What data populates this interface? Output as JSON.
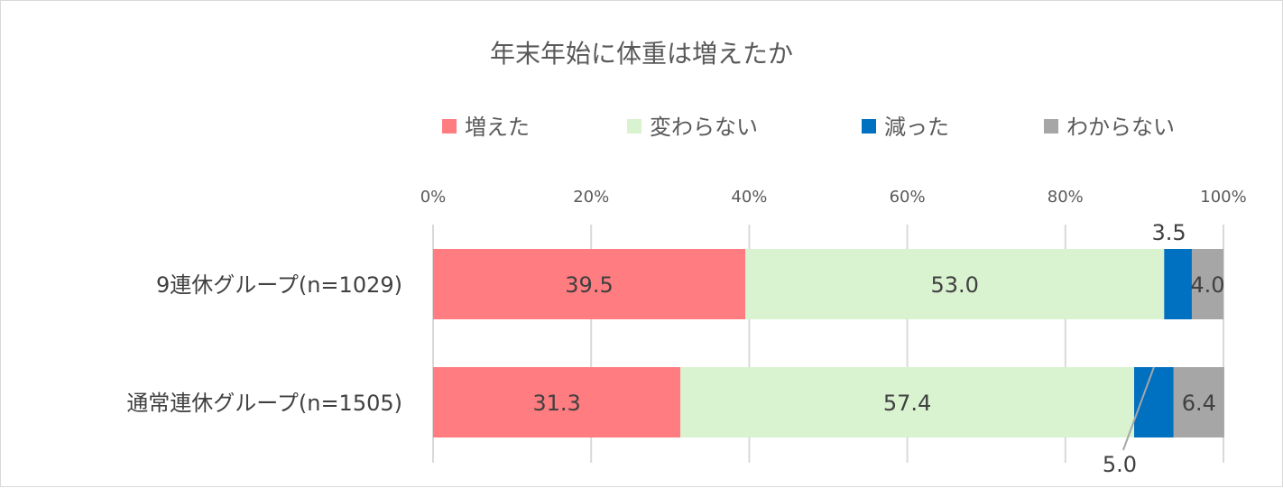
{
  "chart_data": {
    "type": "bar",
    "orientation": "horizontal",
    "stacked": "percent",
    "title": "年末年始に体重は増えたか",
    "categories": [
      "9連休グループ(n=1029)",
      "通常連休グループ(n=1505)"
    ],
    "series": [
      {
        "name": "増えた",
        "color": "#ff7c80",
        "values": [
          39.5,
          31.3
        ]
      },
      {
        "name": "変わらない",
        "color": "#d9f2d0",
        "values": [
          53.0,
          57.4
        ]
      },
      {
        "name": "減った",
        "color": "#0070c0",
        "values": [
          3.5,
          5.0
        ]
      },
      {
        "name": "わからない",
        "color": "#a6a6a6",
        "values": [
          4.0,
          6.4
        ]
      }
    ],
    "value_labels": [
      [
        "39.5",
        "53.0",
        "3.5",
        "4.0"
      ],
      [
        "31.3",
        "57.4",
        "5.0",
        "6.4"
      ]
    ],
    "xlim": [
      0,
      100
    ],
    "x_ticks": [
      "0%",
      "20%",
      "40%",
      "60%",
      "80%",
      "100%"
    ],
    "grid": true,
    "legend_position": "top"
  }
}
